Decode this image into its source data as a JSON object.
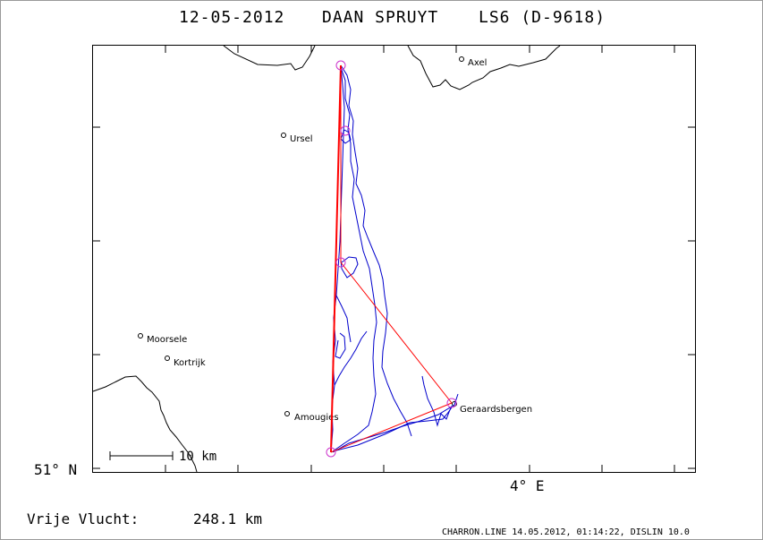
{
  "header": {
    "date": "12-05-2012",
    "pilot": "DAAN SPRUYT",
    "glider": "LS6 (D-9618)"
  },
  "map": {
    "lat_label": "51° N",
    "lon_label": "4° E",
    "scale_label": "10 km",
    "towns": [
      {
        "name": "Axel"
      },
      {
        "name": "Ursel"
      },
      {
        "name": "Moorsele"
      },
      {
        "name": "Kortrijk"
      },
      {
        "name": "Amougies"
      },
      {
        "name": "Geraardsbergen"
      }
    ],
    "colors": {
      "track": "#0000cc",
      "task": "#ff0000",
      "turnpoint": "#cc33cc",
      "border": "#000000"
    }
  },
  "footer": {
    "distance_label": "Vrije Vlucht:",
    "distance_value": "248.1 km",
    "credit": "CHARRON.LINE 14.05.2012, 01:14:22, DISLIN 10.0"
  }
}
